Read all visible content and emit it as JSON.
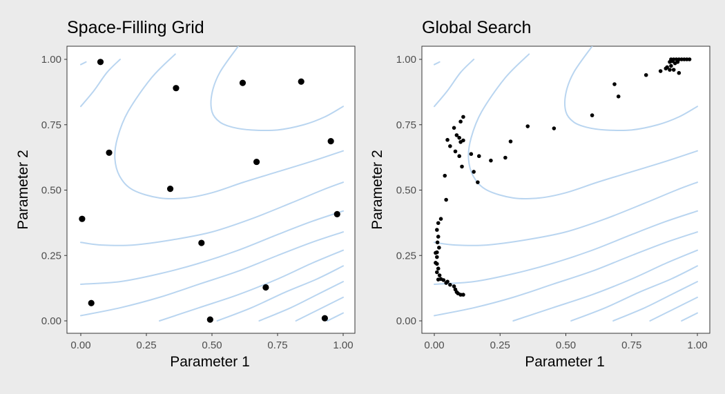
{
  "colors": {
    "contour": "#b9d5f0",
    "point": "#000000",
    "background": "#ebebeb"
  },
  "chart_data": [
    {
      "type": "scatter",
      "title": "Space-Filling Grid",
      "xlabel": "Parameter 1",
      "ylabel": "Parameter 2",
      "xlim": [
        0,
        1
      ],
      "ylim": [
        0,
        1
      ],
      "xticks": [
        "0.00",
        "0.25",
        "0.50",
        "0.75",
        "1.00"
      ],
      "yticks": [
        "0.00",
        "0.25",
        "0.50",
        "0.75",
        "1.00"
      ],
      "grid": false,
      "point_size": "large",
      "points": [
        [
          0.075,
          0.99
        ],
        [
          0.363,
          0.89
        ],
        [
          0.617,
          0.91
        ],
        [
          0.84,
          0.915
        ],
        [
          0.108,
          0.643
        ],
        [
          0.953,
          0.687
        ],
        [
          0.67,
          0.608
        ],
        [
          0.341,
          0.505
        ],
        [
          0.005,
          0.39
        ],
        [
          0.977,
          0.408
        ],
        [
          0.46,
          0.298
        ],
        [
          0.705,
          0.128
        ],
        [
          0.04,
          0.068
        ],
        [
          0.493,
          0.005
        ],
        [
          0.93,
          0.01
        ]
      ]
    },
    {
      "type": "scatter",
      "title": "Global Search",
      "xlabel": "Parameter 1",
      "ylabel": "Parameter 2",
      "xlim": [
        0,
        1
      ],
      "ylim": [
        0,
        1
      ],
      "xticks": [
        "0.00",
        "0.25",
        "0.50",
        "0.75",
        "1.00"
      ],
      "yticks": [
        "0.00",
        "0.25",
        "0.50",
        "0.75",
        "1.00"
      ],
      "grid": false,
      "point_size": "small",
      "points": [
        [
          0.9,
          1.0
        ],
        [
          0.91,
          1.0
        ],
        [
          0.92,
          1.0
        ],
        [
          0.93,
          1.0
        ],
        [
          0.94,
          1.0
        ],
        [
          0.95,
          1.0
        ],
        [
          0.96,
          1.0
        ],
        [
          0.97,
          1.0
        ],
        [
          0.895,
          0.99
        ],
        [
          0.905,
          0.993
        ],
        [
          0.915,
          0.985
        ],
        [
          0.925,
          0.99
        ],
        [
          0.9,
          0.975
        ],
        [
          0.885,
          0.97
        ],
        [
          0.88,
          0.965
        ],
        [
          0.895,
          0.96
        ],
        [
          0.91,
          0.96
        ],
        [
          0.86,
          0.955
        ],
        [
          0.93,
          0.948
        ],
        [
          0.805,
          0.94
        ],
        [
          0.685,
          0.905
        ],
        [
          0.7,
          0.858
        ],
        [
          0.6,
          0.786
        ],
        [
          0.355,
          0.744
        ],
        [
          0.455,
          0.736
        ],
        [
          0.11,
          0.78
        ],
        [
          0.1,
          0.762
        ],
        [
          0.075,
          0.738
        ],
        [
          0.085,
          0.71
        ],
        [
          0.095,
          0.7
        ],
        [
          0.11,
          0.69
        ],
        [
          0.05,
          0.692
        ],
        [
          0.1,
          0.684
        ],
        [
          0.06,
          0.668
        ],
        [
          0.08,
          0.648
        ],
        [
          0.095,
          0.63
        ],
        [
          0.14,
          0.638
        ],
        [
          0.17,
          0.63
        ],
        [
          0.29,
          0.686
        ],
        [
          0.27,
          0.624
        ],
        [
          0.215,
          0.613
        ],
        [
          0.105,
          0.59
        ],
        [
          0.15,
          0.57
        ],
        [
          0.165,
          0.53
        ],
        [
          0.04,
          0.555
        ],
        [
          0.045,
          0.463
        ],
        [
          0.025,
          0.39
        ],
        [
          0.015,
          0.374
        ],
        [
          0.01,
          0.348
        ],
        [
          0.015,
          0.322
        ],
        [
          0.012,
          0.3
        ],
        [
          0.018,
          0.28
        ],
        [
          0.01,
          0.262
        ],
        [
          0.005,
          0.26
        ],
        [
          0.01,
          0.244
        ],
        [
          0.005,
          0.222
        ],
        [
          0.01,
          0.218
        ],
        [
          0.015,
          0.2
        ],
        [
          0.01,
          0.186
        ],
        [
          0.02,
          0.174
        ],
        [
          0.015,
          0.158
        ],
        [
          0.025,
          0.16
        ],
        [
          0.035,
          0.156
        ],
        [
          0.045,
          0.145
        ],
        [
          0.05,
          0.15
        ],
        [
          0.06,
          0.138
        ],
        [
          0.075,
          0.132
        ],
        [
          0.08,
          0.12
        ],
        [
          0.085,
          0.11
        ],
        [
          0.09,
          0.105
        ],
        [
          0.1,
          0.1
        ],
        [
          0.11,
          0.1
        ]
      ]
    }
  ]
}
